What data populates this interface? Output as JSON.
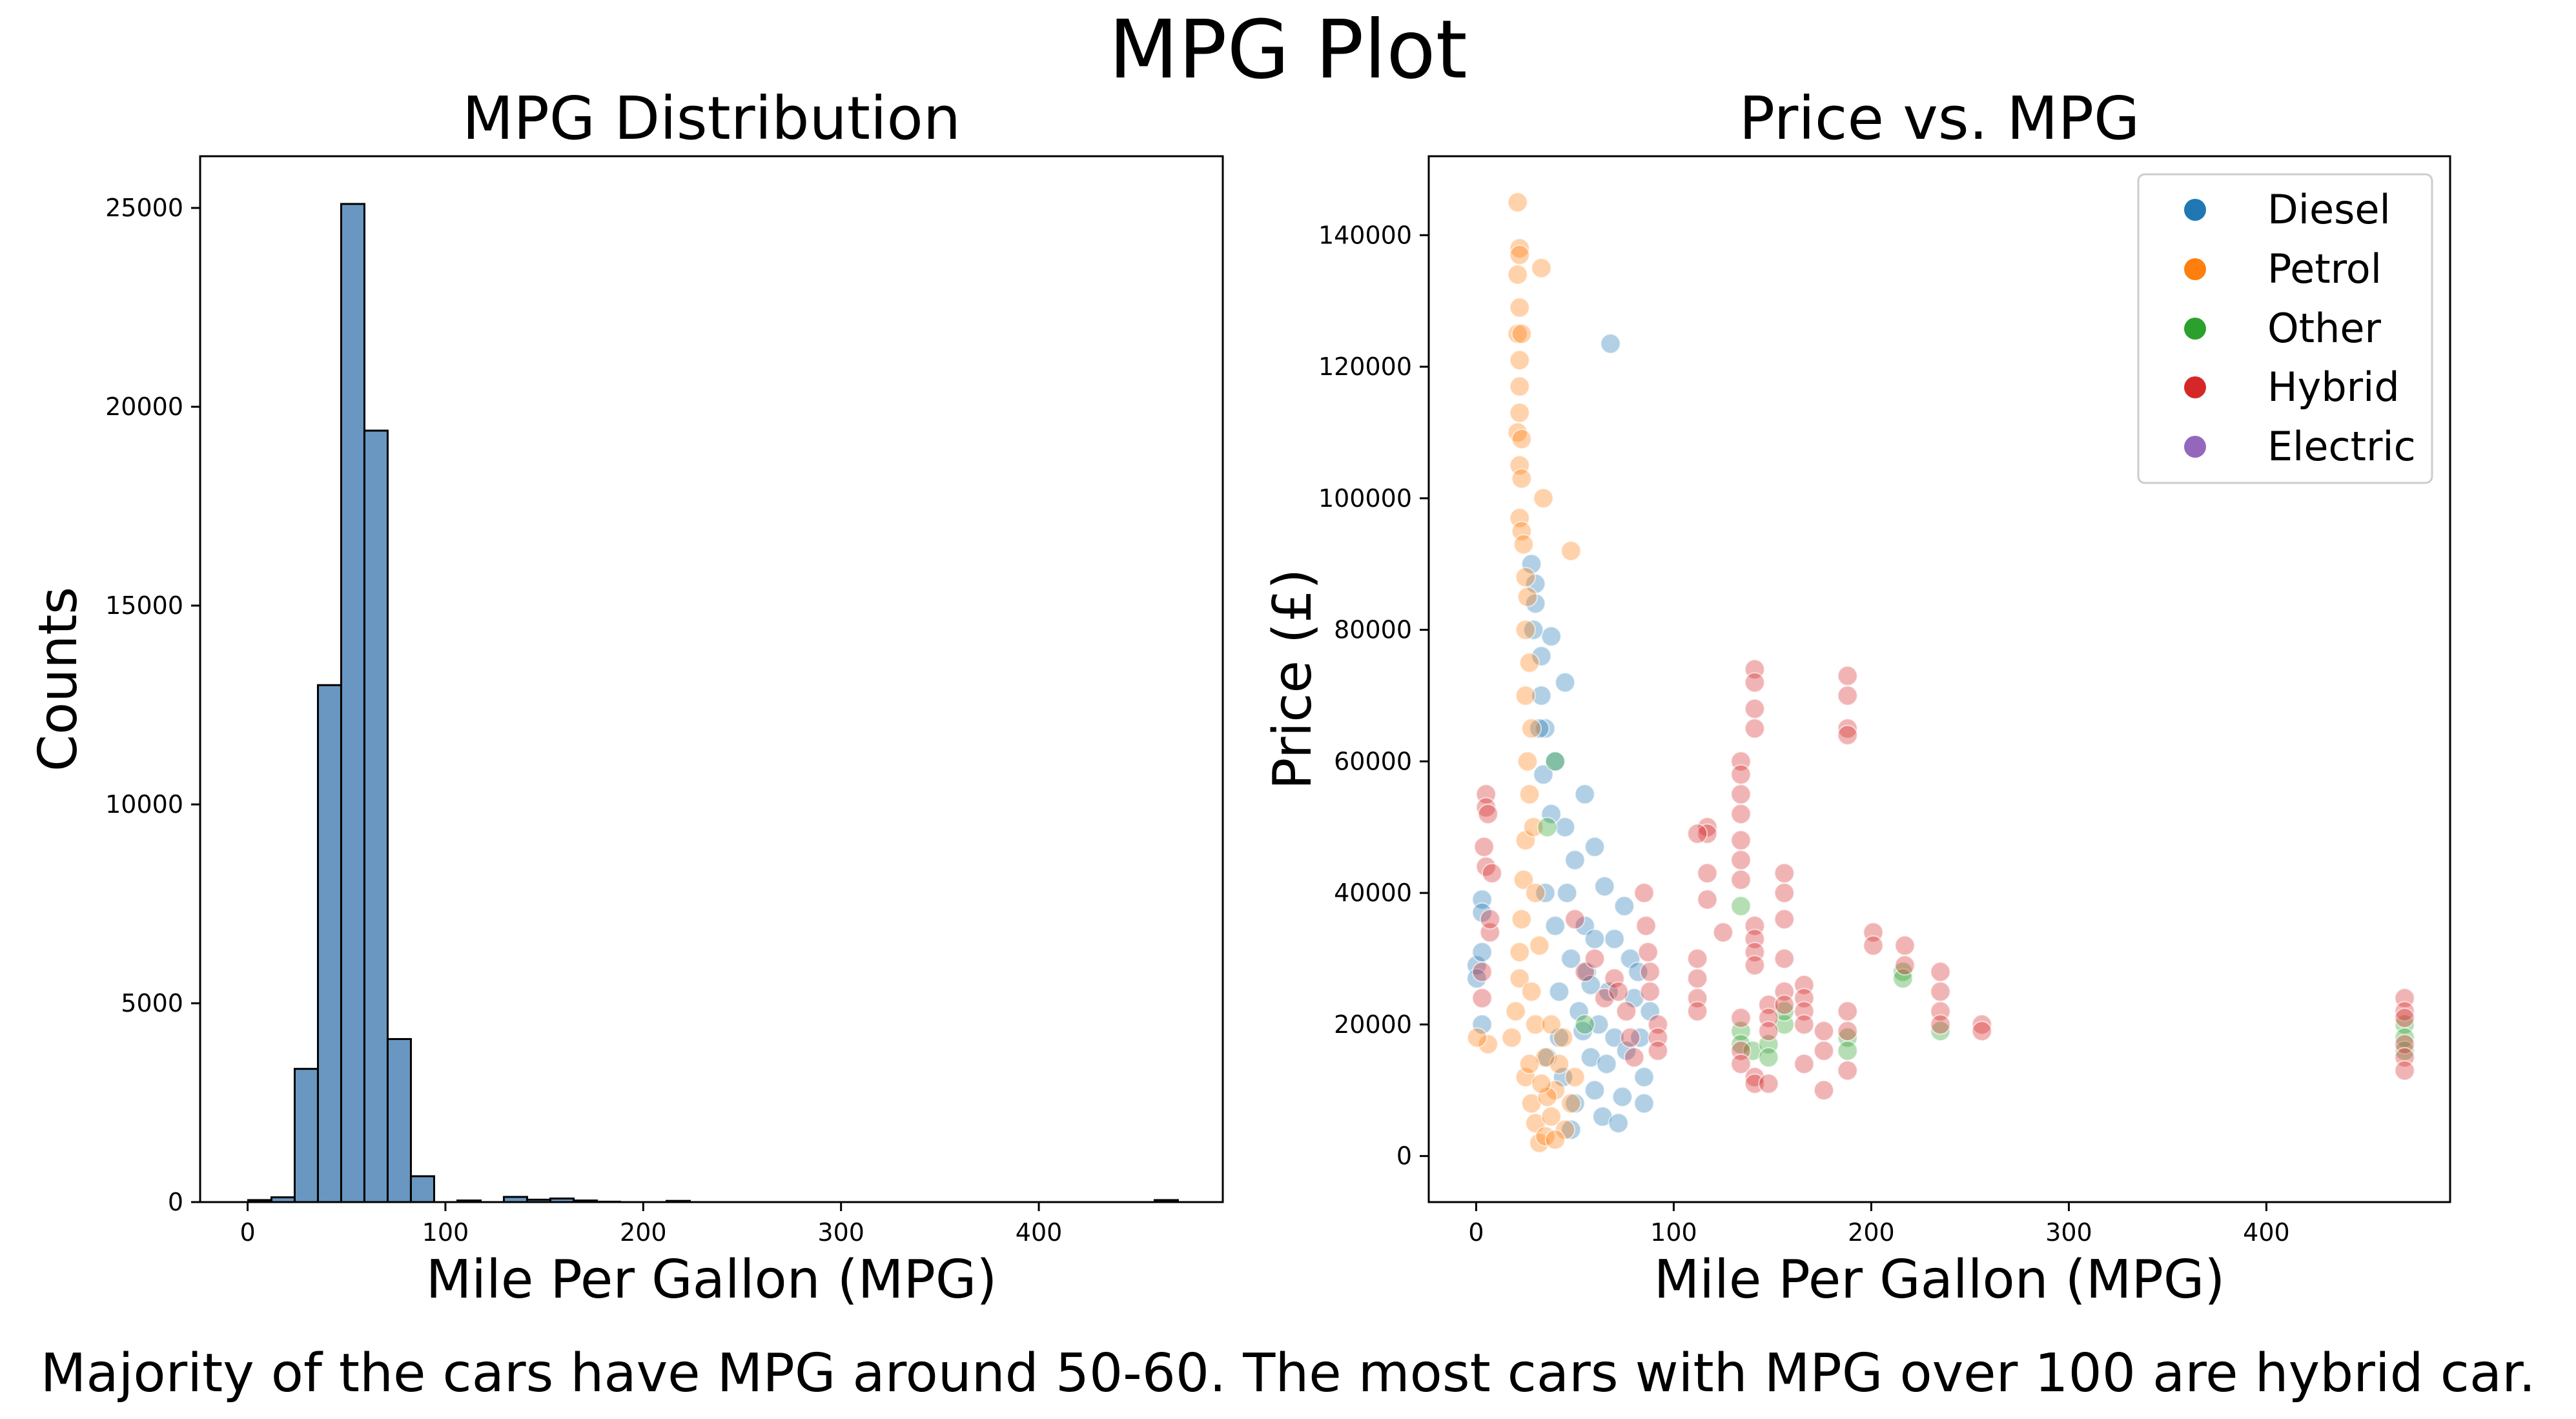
{
  "figure": {
    "title": "MPG Plot",
    "caption": "Majority of the cars have MPG around 50-60. The most cars with MPG over 100 are hybrid car."
  },
  "colors": {
    "hist_fill": "#6a97c1",
    "Diesel": "#1f77b4",
    "Petrol": "#ff7f0e",
    "Other": "#2ca02c",
    "Hybrid": "#d62728",
    "Electric": "#9467bd"
  },
  "chart_data": [
    {
      "type": "bar",
      "subtype": "histogram",
      "title": "MPG Distribution",
      "xlabel": "Mile Per Gallon (MPG)",
      "ylabel": "Counts",
      "xlim": [
        -24,
        493
      ],
      "ylim": [
        0,
        26300
      ],
      "xticks": [
        0,
        100,
        200,
        300,
        400
      ],
      "yticks": [
        0,
        5000,
        10000,
        15000,
        20000,
        25000
      ],
      "bin_width": 11.75,
      "bin_start": 0.3,
      "values": [
        50,
        120,
        3350,
        13000,
        25100,
        19400,
        4100,
        650,
        0,
        40,
        0,
        130,
        60,
        90,
        40,
        10,
        0,
        0,
        30,
        0,
        0,
        0,
        0,
        0,
        0,
        0,
        0,
        0,
        0,
        0,
        0,
        0,
        0,
        0,
        0,
        0,
        0,
        0,
        0,
        50
      ],
      "grid": false
    },
    {
      "type": "scatter",
      "title": "Price vs. MPG",
      "xlabel": "Mile Per Gallon (MPG)",
      "ylabel": "Price (£)",
      "xlim": [
        -24,
        493
      ],
      "ylim": [
        -7000,
        152000
      ],
      "xticks": [
        0,
        100,
        200,
        300,
        400
      ],
      "yticks": [
        0,
        20000,
        40000,
        60000,
        80000,
        100000,
        120000,
        140000
      ],
      "legend": {
        "placement": "top-right",
        "entries": [
          "Diesel",
          "Petrol",
          "Other",
          "Hybrid",
          "Electric"
        ]
      },
      "grid": false,
      "series": [
        {
          "name": "Diesel",
          "points": [
            [
              0.3,
              29000
            ],
            [
              0.3,
              27000
            ],
            [
              3,
              39000
            ],
            [
              3,
              37000
            ],
            [
              3,
              31000
            ],
            [
              3,
              20000
            ],
            [
              28,
              90000
            ],
            [
              30,
              87000
            ],
            [
              30,
              84000
            ],
            [
              33,
              76000
            ],
            [
              33,
              70000
            ],
            [
              35,
              65000
            ],
            [
              38,
              79000
            ],
            [
              40,
              60000
            ],
            [
              45,
              72000
            ],
            [
              45,
              50000
            ],
            [
              50,
              45000
            ],
            [
              55,
              55000
            ],
            [
              60,
              47000
            ],
            [
              65,
              41000
            ],
            [
              68,
              123500
            ],
            [
              70,
              33000
            ],
            [
              75,
              38000
            ],
            [
              78,
              30000
            ],
            [
              80,
              24000
            ],
            [
              83,
              18000
            ],
            [
              85,
              12000
            ],
            [
              85,
              8000
            ],
            [
              35,
              40000
            ],
            [
              40,
              35000
            ],
            [
              42,
              25000
            ],
            [
              48,
              30000
            ],
            [
              52,
              22000
            ],
            [
              56,
              28000
            ],
            [
              58,
              15000
            ],
            [
              60,
              10000
            ],
            [
              62,
              20000
            ],
            [
              64,
              6000
            ],
            [
              66,
              14000
            ],
            [
              70,
              18000
            ],
            [
              72,
              5000
            ],
            [
              74,
              9000
            ],
            [
              76,
              16000
            ],
            [
              44,
              12000
            ],
            [
              50,
              8000
            ],
            [
              36,
              15000
            ],
            [
              55,
              35000
            ],
            [
              46,
              40000
            ],
            [
              38,
              52000
            ],
            [
              42,
              18000
            ],
            [
              34,
              58000
            ],
            [
              32,
              65000
            ],
            [
              29,
              80000
            ],
            [
              60,
              33000
            ],
            [
              67,
              25000
            ],
            [
              82,
              28000
            ],
            [
              88,
              22000
            ],
            [
              54,
              19000
            ],
            [
              48,
              4000
            ],
            [
              58,
              26000
            ]
          ]
        },
        {
          "name": "Petrol",
          "points": [
            [
              21,
              145000
            ],
            [
              22,
              138000
            ],
            [
              22,
              137000
            ],
            [
              21,
              134000
            ],
            [
              22,
              129000
            ],
            [
              33,
              135000
            ],
            [
              21,
              125000
            ],
            [
              23,
              125000
            ],
            [
              22,
              121000
            ],
            [
              22,
              117000
            ],
            [
              22,
              113000
            ],
            [
              21,
              110000
            ],
            [
              23,
              109000
            ],
            [
              22,
              105000
            ],
            [
              23,
              103000
            ],
            [
              34,
              100000
            ],
            [
              22,
              97000
            ],
            [
              23,
              95000
            ],
            [
              24,
              93000
            ],
            [
              48,
              92000
            ],
            [
              25,
              88000
            ],
            [
              26,
              85000
            ],
            [
              25,
              80000
            ],
            [
              27,
              75000
            ],
            [
              25,
              70000
            ],
            [
              28,
              65000
            ],
            [
              26,
              60000
            ],
            [
              27,
              55000
            ],
            [
              25,
              48000
            ],
            [
              24,
              42000
            ],
            [
              23,
              36000
            ],
            [
              22,
              31000
            ],
            [
              22,
              27000
            ],
            [
              20,
              22000
            ],
            [
              18,
              18000
            ],
            [
              6,
              17000
            ],
            [
              0.5,
              18000
            ],
            [
              25,
              12000
            ],
            [
              28,
              8000
            ],
            [
              30,
              5000
            ],
            [
              32,
              2000
            ],
            [
              35,
              3000
            ],
            [
              38,
              6000
            ],
            [
              40,
              10000
            ],
            [
              42,
              14000
            ],
            [
              45,
              4000
            ],
            [
              48,
              8000
            ],
            [
              50,
              12000
            ],
            [
              35,
              15000
            ],
            [
              30,
              20000
            ],
            [
              28,
              25000
            ],
            [
              32,
              32000
            ],
            [
              38,
              20000
            ],
            [
              44,
              18000
            ],
            [
              36,
              9000
            ],
            [
              33,
              11000
            ],
            [
              27,
              14000
            ],
            [
              40,
              2500
            ],
            [
              30,
              40000
            ],
            [
              29,
              50000
            ]
          ]
        },
        {
          "name": "Other",
          "points": [
            [
              40,
              60000
            ],
            [
              36,
              50000
            ],
            [
              134,
              38000
            ],
            [
              134,
              19000
            ],
            [
              134,
              17000
            ],
            [
              140,
              16000
            ],
            [
              148,
              17000
            ],
            [
              148,
              15000
            ],
            [
              156,
              20000
            ],
            [
              156,
              22000
            ],
            [
              188,
              18000
            ],
            [
              188,
              16000
            ],
            [
              216,
              28000
            ],
            [
              216,
              27000
            ],
            [
              235,
              19000
            ],
            [
              470,
              20000
            ],
            [
              470,
              18000
            ],
            [
              470,
              16000
            ],
            [
              55,
              20000
            ]
          ]
        },
        {
          "name": "Hybrid",
          "points": [
            [
              5,
              55000
            ],
            [
              5,
              53000
            ],
            [
              6,
              52000
            ],
            [
              5,
              44000
            ],
            [
              4,
              47000
            ],
            [
              8,
              43000
            ],
            [
              3,
              28000
            ],
            [
              3,
              24000
            ],
            [
              7,
              34000
            ],
            [
              7,
              36000
            ],
            [
              50,
              36000
            ],
            [
              55,
              28000
            ],
            [
              60,
              30000
            ],
            [
              65,
              24000
            ],
            [
              70,
              27000
            ],
            [
              72,
              25000
            ],
            [
              76,
              22000
            ],
            [
              78,
              18000
            ],
            [
              80,
              15000
            ],
            [
              85,
              40000
            ],
            [
              86,
              35000
            ],
            [
              87,
              31000
            ],
            [
              88,
              28000
            ],
            [
              88,
              25000
            ],
            [
              92,
              20000
            ],
            [
              92,
              18000
            ],
            [
              92,
              16000
            ],
            [
              112,
              30000
            ],
            [
              112,
              27000
            ],
            [
              112,
              24000
            ],
            [
              112,
              22000
            ],
            [
              117,
              50000
            ],
            [
              117,
              49000
            ],
            [
              117,
              43000
            ],
            [
              117,
              39000
            ],
            [
              112,
              49000
            ],
            [
              125,
              34000
            ],
            [
              134,
              60000
            ],
            [
              134,
              58000
            ],
            [
              134,
              55000
            ],
            [
              134,
              52000
            ],
            [
              134,
              48000
            ],
            [
              134,
              45000
            ],
            [
              134,
              42000
            ],
            [
              134,
              21000
            ],
            [
              134,
              16000
            ],
            [
              134,
              14000
            ],
            [
              141,
              74000
            ],
            [
              141,
              72000
            ],
            [
              141,
              68000
            ],
            [
              141,
              65000
            ],
            [
              141,
              35000
            ],
            [
              141,
              33000
            ],
            [
              141,
              31000
            ],
            [
              141,
              29000
            ],
            [
              141,
              12000
            ],
            [
              141,
              11000
            ],
            [
              148,
              23000
            ],
            [
              148,
              21000
            ],
            [
              148,
              19000
            ],
            [
              148,
              11000
            ],
            [
              156,
              43000
            ],
            [
              156,
              40000
            ],
            [
              156,
              36000
            ],
            [
              156,
              30000
            ],
            [
              156,
              25000
            ],
            [
              156,
              23000
            ],
            [
              166,
              26000
            ],
            [
              166,
              24000
            ],
            [
              166,
              22000
            ],
            [
              166,
              20000
            ],
            [
              166,
              14000
            ],
            [
              176,
              19000
            ],
            [
              176,
              16000
            ],
            [
              176,
              10000
            ],
            [
              188,
              73000
            ],
            [
              188,
              70000
            ],
            [
              188,
              65000
            ],
            [
              188,
              64000
            ],
            [
              188,
              22000
            ],
            [
              188,
              19000
            ],
            [
              188,
              13000
            ],
            [
              201,
              34000
            ],
            [
              201,
              32000
            ],
            [
              217,
              32000
            ],
            [
              217,
              29000
            ],
            [
              235,
              28000
            ],
            [
              235,
              25000
            ],
            [
              235,
              22000
            ],
            [
              235,
              20000
            ],
            [
              256,
              20000
            ],
            [
              256,
              19000
            ],
            [
              470,
              24000
            ],
            [
              470,
              22000
            ],
            [
              470,
              21000
            ],
            [
              470,
              17000
            ],
            [
              470,
              15000
            ],
            [
              470,
              13000
            ]
          ]
        },
        {
          "name": "Electric",
          "points": []
        }
      ]
    }
  ]
}
